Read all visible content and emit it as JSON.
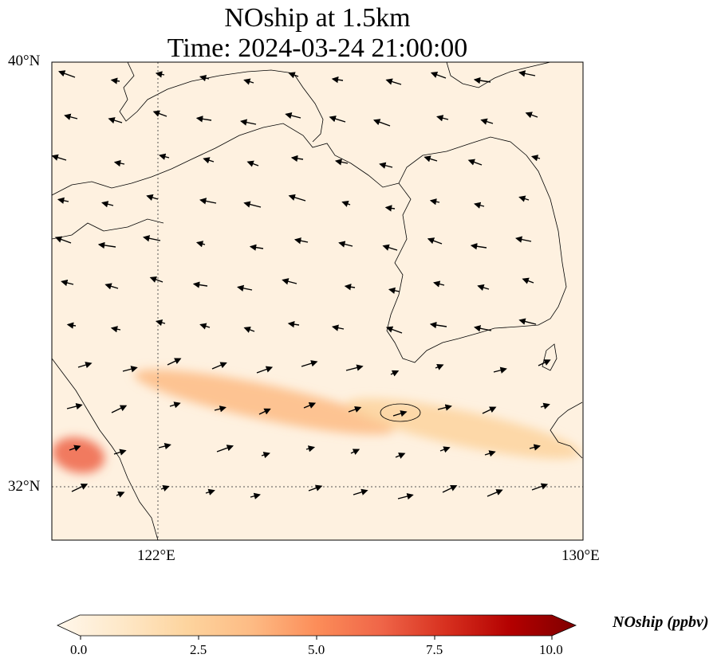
{
  "title": {
    "line1": "NOship at 1.5km",
    "line2": "Time: 2024-03-24 21:00:00"
  },
  "axes": {
    "lat_labels": [
      "40°N",
      "32°N"
    ],
    "lon_labels": [
      "122°E",
      "130°E"
    ],
    "lat_range": [
      31,
      40
    ],
    "lon_range": [
      120,
      130
    ],
    "gridlines": {
      "lats": [
        32
      ],
      "lons": [
        122
      ],
      "style": "dotted"
    }
  },
  "colorbar": {
    "label": "NOship (ppbv)",
    "ticks": [
      "0.0",
      "2.5",
      "5.0",
      "7.5",
      "10.0"
    ],
    "range": [
      0,
      10
    ],
    "extend": "both",
    "colormap": "OrRd",
    "colors": [
      "#fff7ec",
      "#fee8c8",
      "#fdd49e",
      "#fdbb84",
      "#fc8d59",
      "#ef6548",
      "#d7301f",
      "#b30000",
      "#7f0000"
    ]
  },
  "chart_data": {
    "type": "heatmap",
    "variable": "NOship",
    "units": "ppbv",
    "level": "1.5km",
    "time": "2024-03-24 21:00:00",
    "plumes": [
      {
        "lon_range": [
          121.5,
          126.5
        ],
        "lat_center": 33.6,
        "peak_value": 4.2
      },
      {
        "lon_range": [
          125.5,
          130
        ],
        "lat_center": 33.1,
        "peak_value": 2.0
      },
      {
        "lon_range": [
          120,
          121
        ],
        "lat_center": 32.6,
        "peak_value": 6.0
      }
    ],
    "background_value": 0.3,
    "wind_vectors": "present"
  }
}
